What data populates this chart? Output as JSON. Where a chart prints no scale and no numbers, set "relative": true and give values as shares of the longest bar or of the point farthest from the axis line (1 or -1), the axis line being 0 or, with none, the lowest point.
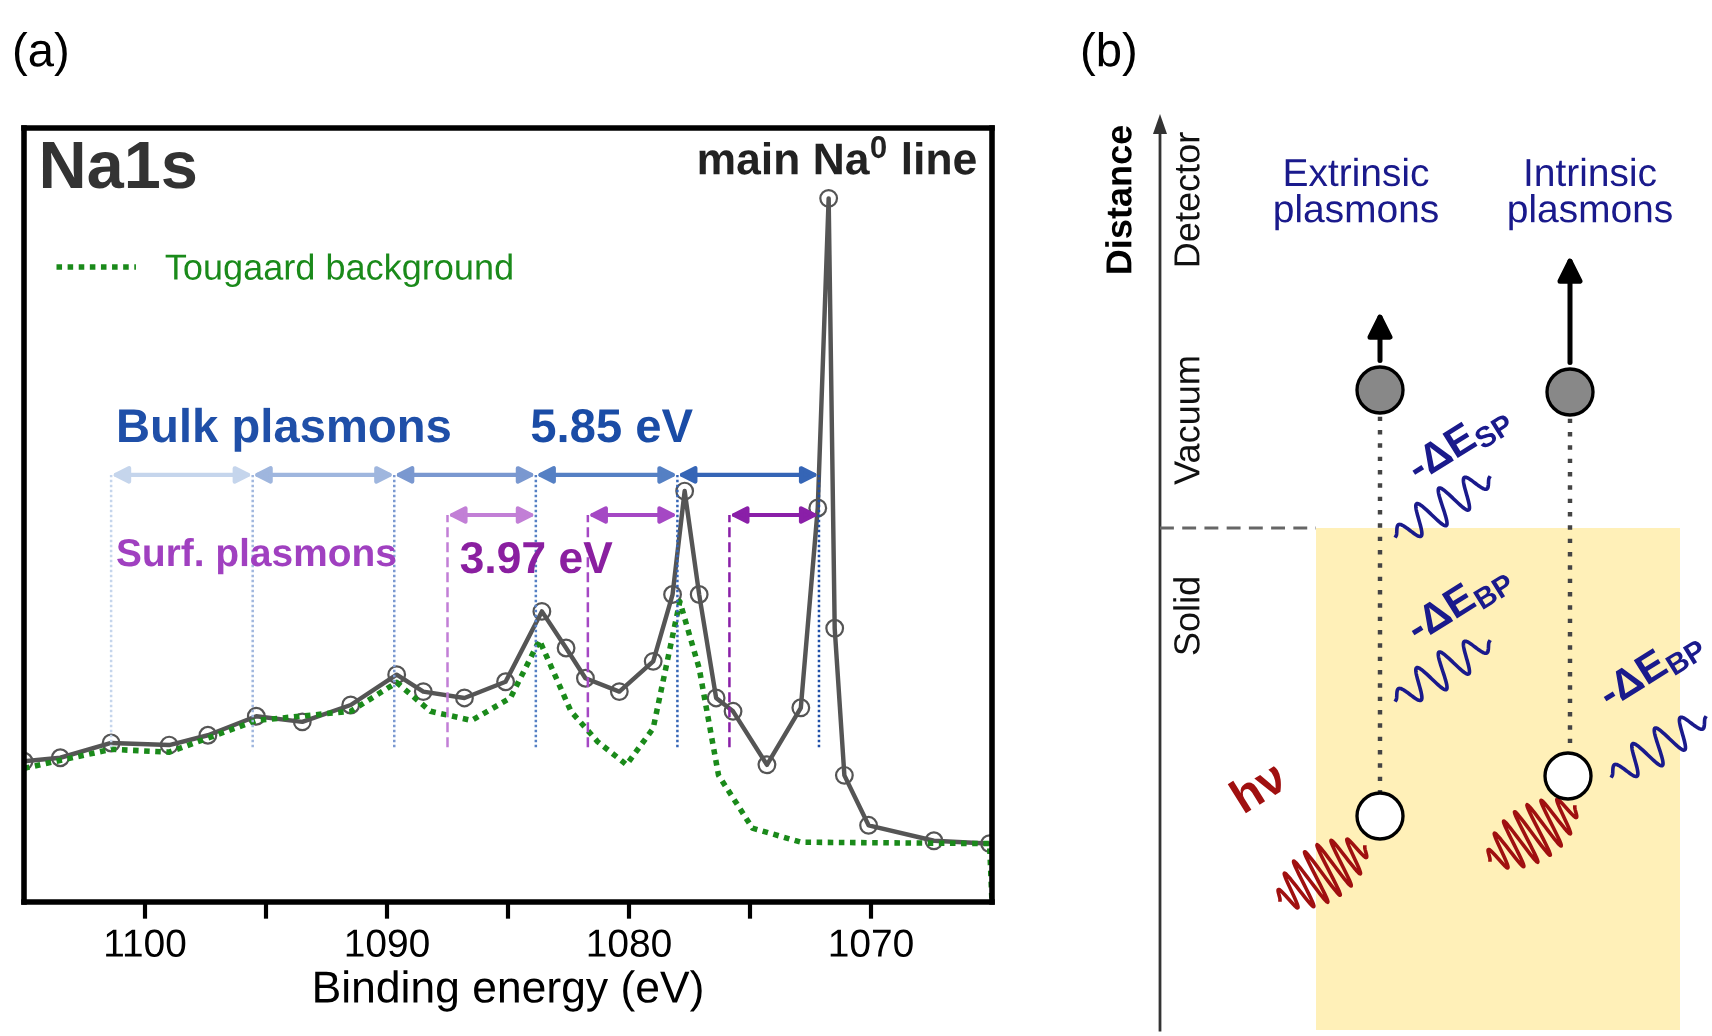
{
  "chart_data": [
    {
      "type": "line",
      "title": "Na1s",
      "subtitle": "(a)",
      "xlabel": "Binding energy (eV)",
      "relative": true,
      "xlim": [
        1105,
        1065
      ],
      "xticks": [
        1100,
        {
          "value": 1095,
          "label": null
        },
        1090,
        {
          "value": 1085,
          "label": null
        },
        1080,
        {
          "value": 1075,
          "label": null
        },
        1070
      ],
      "legend": "top left",
      "grid": false,
      "series": [
        {
          "color": "#555555",
          "marker": "circle",
          "line_style": "solid",
          "x": [
            1105,
            1103.5,
            1101.4,
            1099,
            1097.4,
            1095.4,
            1093.5,
            1091.5,
            1089.6,
            1088.5,
            1086.8,
            1085.1,
            1083.6,
            1082.6,
            1081.8,
            1080.4,
            1079.0,
            1078.2,
            1077.7,
            1077.1,
            1076.4,
            1075.7,
            1074.3,
            1072.9,
            1072.2,
            1071.75,
            1071.5,
            1071.1,
            1070.1,
            1067.4,
            1065.1
          ],
          "values": [
            0.2,
            0.205,
            0.226,
            0.223,
            0.237,
            0.264,
            0.256,
            0.28,
            0.323,
            0.299,
            0.29,
            0.313,
            0.413,
            0.361,
            0.318,
            0.299,
            0.342,
            0.437,
            0.584,
            0.437,
            0.29,
            0.271,
            0.195,
            0.276,
            0.56,
            1.0,
            0.389,
            0.18,
            0.109,
            0.087,
            0.083
          ]
        },
        {
          "name": "Tougaard background",
          "color": "#1a8a1a",
          "marker": "none",
          "line_style": "dotted",
          "x": [
            1105,
            1101.4,
            1099,
            1095.4,
            1091.5,
            1089.6,
            1088.2,
            1086.5,
            1084.9,
            1083.7,
            1082.4,
            1081.3,
            1080.1,
            1079.0,
            1077.9,
            1077.1,
            1076.3,
            1074.9,
            1072.9,
            1065.1,
            1065
          ],
          "values": [
            0.19,
            0.217,
            0.213,
            0.258,
            0.271,
            0.312,
            0.271,
            0.258,
            0.29,
            0.372,
            0.271,
            0.228,
            0.195,
            0.247,
            0.427,
            0.332,
            0.18,
            0.105,
            0.085,
            0.083,
            0
          ]
        }
      ],
      "ref_lines": [
        {
          "axis": "x",
          "value": 1101.4,
          "color": "#c5d5ec",
          "line_style": "dotted"
        },
        {
          "axis": "x",
          "value": 1095.55,
          "color": "#9fb6de",
          "line_style": "dotted"
        },
        {
          "axis": "x",
          "value": 1089.7,
          "color": "#7a98d0",
          "line_style": "dotted"
        },
        {
          "axis": "x",
          "value": 1083.85,
          "color": "#5580c4",
          "line_style": "dotted"
        },
        {
          "axis": "x",
          "value": 1078.0,
          "color": "#3565b6",
          "line_style": "dotted"
        },
        {
          "axis": "x",
          "value": 1072.15,
          "color": "#1f4fa8",
          "line_style": "dotted"
        },
        {
          "axis": "x",
          "value": 1087.5,
          "color": "#c27fd6",
          "line_style": "dashed"
        },
        {
          "axis": "x",
          "value": 1081.7,
          "color": "#a548c4",
          "line_style": "dashed"
        },
        {
          "axis": "x",
          "value": 1075.85,
          "color": "#8a1fa8",
          "line_style": "dashed"
        }
      ],
      "annotations": [
        "main Na$^{0}$ line",
        "Bulk plasmons",
        "5.85 eV",
        "Surf. plasmons",
        "3.97 eV"
      ]
    },
    {
      "type": "other",
      "title": "(b)",
      "ylabel": "Distance",
      "annotations": [
        "Detector",
        "Vacuum",
        "Solid",
        "Extrinsic\nplasmons",
        "Intrinsic\nplasmons",
        "-ΔE$_{SP}$",
        "-ΔE$_{BP}$",
        "-ΔE$_{BP}$",
        "hν"
      ]
    }
  ]
}
